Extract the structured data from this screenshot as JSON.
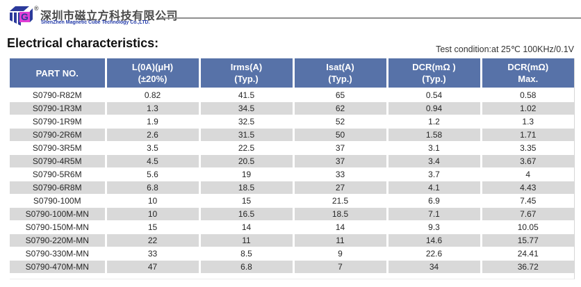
{
  "company": {
    "registered_mark": "®",
    "name_cn": "深圳市磁立方科技有限公司",
    "name_en": "ShenZhen Magnetic Cube Technology Co.,LTD."
  },
  "section": {
    "title": "Electrical characteristics:",
    "test_condition": "Test condition:at 25℃ 100KHz/0.1V"
  },
  "colors": {
    "header_bg": "#5772a8",
    "row_stripe": "#d9d9d9",
    "logo_blue": "#2b3a9b",
    "logo_magenta": "#e13ed6",
    "company_en_blue": "#2038a8",
    "rule_gray": "#8f8f8f"
  },
  "table": {
    "columns": [
      {
        "label": "PART NO.",
        "sub": ""
      },
      {
        "label": "L(0A)(μH)",
        "sub": "(±20%)"
      },
      {
        "label": "Irms(A)",
        "sub": "(Typ.)"
      },
      {
        "label": "Isat(A)",
        "sub": "(Typ.)"
      },
      {
        "label": "DCR(mΩ )",
        "sub": "(Typ.)"
      },
      {
        "label": "DCR(mΩ)",
        "sub": "Max."
      }
    ],
    "rows": [
      [
        "S0790-R82M",
        "0.82",
        "41.5",
        "65",
        "0.54",
        "0.58"
      ],
      [
        "S0790-1R3M",
        "1.3",
        "34.5",
        "62",
        "0.94",
        "1.02"
      ],
      [
        "S0790-1R9M",
        "1.9",
        "32.5",
        "52",
        "1.2",
        "1.3"
      ],
      [
        "S0790-2R6M",
        "2.6",
        "31.5",
        "50",
        "1.58",
        "1.71"
      ],
      [
        "S0790-3R5M",
        "3.5",
        "22.5",
        "37",
        "3.1",
        "3.35"
      ],
      [
        "S0790-4R5M",
        "4.5",
        "20.5",
        "37",
        "3.4",
        "3.67"
      ],
      [
        "S0790-5R6M",
        "5.6",
        "19",
        "33",
        "3.7",
        "4"
      ],
      [
        "S0790-6R8M",
        "6.8",
        "18.5",
        "27",
        "4.1",
        "4.43"
      ],
      [
        "S0790-100M",
        "10",
        "15",
        "21.5",
        "6.9",
        "7.45"
      ],
      [
        "S0790-100M-MN",
        "10",
        "16.5",
        "18.5",
        "7.1",
        "7.67"
      ],
      [
        "S0790-150M-MN",
        "15",
        "14",
        "14",
        "9.3",
        "10.05"
      ],
      [
        "S0790-220M-MN",
        "22",
        "11",
        "11",
        "14.6",
        "15.77"
      ],
      [
        "S0790-330M-MN",
        "33",
        "8.5",
        "9",
        "22.6",
        "24.41"
      ],
      [
        "S0790-470M-MN",
        "47",
        "6.8",
        "7",
        "34",
        "36.72"
      ]
    ]
  }
}
